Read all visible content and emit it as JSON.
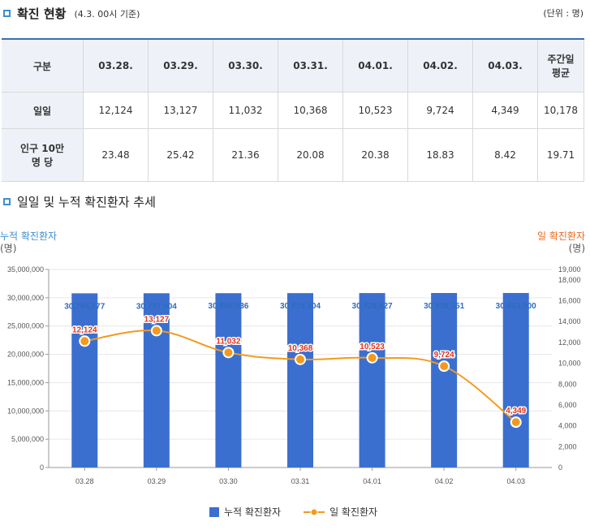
{
  "section1": {
    "title": "확진 현황",
    "subtitle": "(4.3. 00시 기준)",
    "unit": "(단위 : 명)"
  },
  "table": {
    "header_first": "구분",
    "dates": [
      "03.28.",
      "03.29.",
      "03.30.",
      "03.31.",
      "04.01.",
      "04.02.",
      "04.03."
    ],
    "header_last_line1": "주간일",
    "header_last_line2": "평균",
    "rows": [
      {
        "label_line1": "일일",
        "label_line2": "",
        "values": [
          "12,124",
          "13,127",
          "11,032",
          "10,368",
          "10,523",
          "9,724",
          "4,349"
        ],
        "avg": "10,178"
      },
      {
        "label_line1": "인구 10만",
        "label_line2": "명 당",
        "values": [
          "23.48",
          "25.42",
          "21.36",
          "20.08",
          "20.38",
          "18.83",
          "8.42"
        ],
        "avg": "19.71"
      }
    ]
  },
  "section2": {
    "title": "일일 및 누적 확진환자 추세"
  },
  "left_axis": {
    "title": "누적 확진환자",
    "unit": "(명)"
  },
  "right_axis": {
    "title": "일 확진환자",
    "unit": "(명)"
  },
  "legend": {
    "bar": "누적 확진환자",
    "line": "일 확진환자"
  },
  "colors": {
    "bar": "#3b6fcf",
    "line": "#f39a1e",
    "line_label": "#e2321d",
    "left_axis_title": "#3b8fd1",
    "right_axis_title": "#e86a1f",
    "bar_label": "#2f6bbf"
  },
  "chart_data": {
    "type": "bar",
    "categories": [
      "03.28",
      "03.29",
      "03.30",
      "03.31",
      "04.01",
      "04.02",
      "04.03"
    ],
    "series": [
      {
        "name": "누적 확진환자",
        "type": "bar",
        "axis": "left",
        "values": [
          30784777,
          30797904,
          30808936,
          30819304,
          30829827,
          30839551,
          30843900
        ],
        "labels": [
          "30,784,777",
          "30,797,904",
          "30,808,936",
          "30,819,304",
          "30,829,827",
          "30,839,551",
          "30,843,900"
        ]
      },
      {
        "name": "일 확진환자",
        "type": "line",
        "axis": "right",
        "values": [
          12124,
          13127,
          11032,
          10368,
          10523,
          9724,
          4349
        ],
        "labels": [
          "12,124",
          "13,127",
          "11,032",
          "10,368",
          "10,523",
          "9,724",
          "4,349"
        ]
      }
    ],
    "left_ylim": [
      0,
      35000000
    ],
    "left_ticks": [
      {
        "v": 0,
        "t": "0"
      },
      {
        "v": 5000000,
        "t": "5,000,000"
      },
      {
        "v": 10000000,
        "t": "10,000,000"
      },
      {
        "v": 15000000,
        "t": "15,000,000"
      },
      {
        "v": 20000000,
        "t": "20,000,000"
      },
      {
        "v": 25000000,
        "t": "25,000,000"
      },
      {
        "v": 30000000,
        "t": "30,000,000"
      },
      {
        "v": 35000000,
        "t": "35,000,000"
      }
    ],
    "right_ylim": [
      0,
      19000
    ],
    "right_ticks": [
      {
        "v": 0,
        "t": "0"
      },
      {
        "v": 2000,
        "t": "2,000"
      },
      {
        "v": 4000,
        "t": "4,000"
      },
      {
        "v": 6000,
        "t": "6,000"
      },
      {
        "v": 8000,
        "t": "8,000"
      },
      {
        "v": 10000,
        "t": "10,000"
      },
      {
        "v": 12000,
        "t": "12,000"
      },
      {
        "v": 14000,
        "t": "14,000"
      },
      {
        "v": 16000,
        "t": "16,000"
      },
      {
        "v": 18000,
        "t": "18,000"
      },
      {
        "v": 19000,
        "t": "19,000"
      }
    ],
    "grid": "horizontal",
    "legend_position": "bottom"
  }
}
